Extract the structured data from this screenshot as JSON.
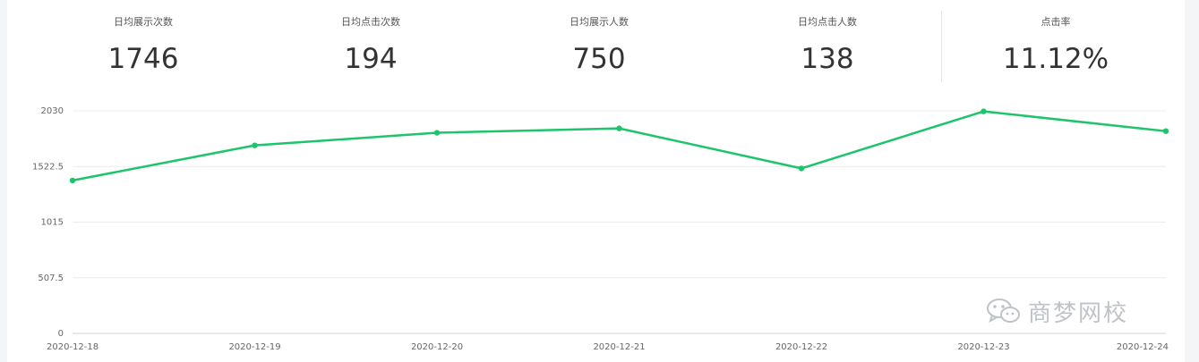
{
  "stats": [
    {
      "label": "日均展示次数",
      "value": "1746"
    },
    {
      "label": "日均点击次数",
      "value": "194"
    },
    {
      "label": "日均展示人数",
      "value": "750"
    },
    {
      "label": "日均点击人数",
      "value": "138"
    },
    {
      "label": "点击率",
      "value": "11.12%"
    }
  ],
  "watermark": {
    "text": "商梦网校",
    "icon": "wechat-icon"
  },
  "colors": {
    "line": "#1ec46b",
    "grid": "#ececec",
    "axis_text": "#666666"
  },
  "chart_data": {
    "type": "line",
    "x": [
      "2020-12-18",
      "2020-12-19",
      "2020-12-20",
      "2020-12-21",
      "2020-12-22",
      "2020-12-23",
      "2020-12-24"
    ],
    "series": [
      {
        "values": [
          1395,
          1715,
          1830,
          1870,
          1505,
          2025,
          1845
        ]
      }
    ],
    "y_ticks": [
      "2030",
      "1522.5",
      "1015",
      "507.5",
      "0"
    ],
    "ylim": [
      0,
      2030
    ],
    "grid": true
  }
}
